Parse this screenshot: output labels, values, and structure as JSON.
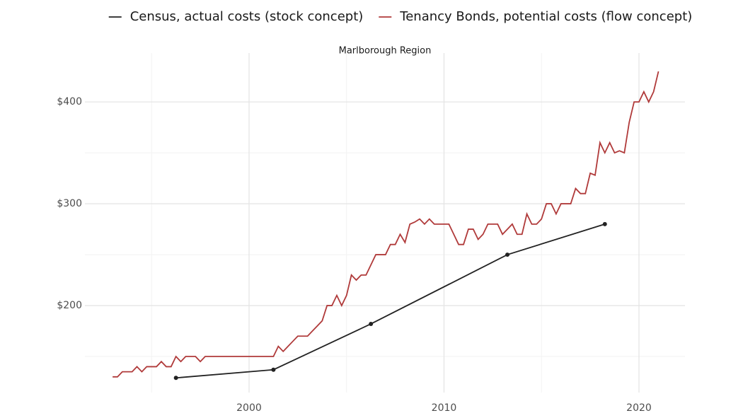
{
  "chart_data": {
    "type": "line",
    "subtitle": "Marlborough Region",
    "series": [
      {
        "name": "Census, actual costs (stock concept)",
        "color": "#222222",
        "markers": true,
        "x": [
          1996.25,
          2001.25,
          2006.25,
          2013.25,
          2018.25
        ],
        "values": [
          129,
          137,
          182,
          250,
          280
        ]
      },
      {
        "name": "Tenancy Bonds, potential costs (flow concept)",
        "color": "#b03a3a",
        "markers": false,
        "x": [
          1993,
          1993.25,
          1993.5,
          1993.75,
          1994,
          1994.25,
          1994.5,
          1994.75,
          1995,
          1995.25,
          1995.5,
          1995.75,
          1996,
          1996.25,
          1996.5,
          1996.75,
          1997,
          1997.25,
          1997.5,
          1997.75,
          1998,
          1998.25,
          1998.5,
          1998.75,
          1999,
          1999.25,
          1999.5,
          1999.75,
          2000,
          2000.25,
          2000.5,
          2000.75,
          2001,
          2001.25,
          2001.5,
          2001.75,
          2002,
          2002.25,
          2002.5,
          2002.75,
          2003,
          2003.25,
          2003.5,
          2003.75,
          2004,
          2004.25,
          2004.5,
          2004.75,
          2005,
          2005.25,
          2005.5,
          2005.75,
          2006,
          2006.25,
          2006.5,
          2006.75,
          2007,
          2007.25,
          2007.5,
          2007.75,
          2008,
          2008.25,
          2008.5,
          2008.75,
          2009,
          2009.25,
          2009.5,
          2009.75,
          2010,
          2010.25,
          2010.5,
          2010.75,
          2011,
          2011.25,
          2011.5,
          2011.75,
          2012,
          2012.25,
          2012.5,
          2012.75,
          2013,
          2013.25,
          2013.5,
          2013.75,
          2014,
          2014.25,
          2014.5,
          2014.75,
          2015,
          2015.25,
          2015.5,
          2015.75,
          2016,
          2016.25,
          2016.5,
          2016.75,
          2017,
          2017.25,
          2017.5,
          2017.75,
          2018,
          2018.25,
          2018.5,
          2018.75,
          2019,
          2019.25,
          2019.5,
          2019.75,
          2020,
          2020.25,
          2020.5,
          2020.75,
          2021
        ],
        "values": [
          130,
          130,
          135,
          135,
          135,
          140,
          135,
          140,
          140,
          140,
          145,
          140,
          140,
          150,
          145,
          150,
          150,
          150,
          145,
          150,
          150,
          150,
          150,
          150,
          150,
          150,
          150,
          150,
          150,
          150,
          150,
          150,
          150,
          150,
          160,
          155,
          160,
          165,
          170,
          170,
          170,
          175,
          180,
          185,
          200,
          200,
          210,
          200,
          210,
          230,
          225,
          230,
          230,
          240,
          250,
          250,
          250,
          260,
          260,
          270,
          262,
          280,
          282,
          285,
          280,
          285,
          280,
          280,
          280,
          280,
          270,
          260,
          260,
          275,
          275,
          265,
          270,
          280,
          280,
          280,
          270,
          275,
          280,
          270,
          270,
          290,
          280,
          280,
          285,
          300,
          300,
          290,
          300,
          300,
          300,
          315,
          310,
          310,
          330,
          328,
          360,
          350,
          360,
          350,
          352,
          350,
          380,
          400,
          400,
          410,
          400,
          410,
          430
        ]
      }
    ],
    "xlim": [
      1991.58,
      2022.36
    ],
    "xticks": [
      2000,
      2010,
      2020
    ],
    "ylim": [
      114.6,
      448
    ],
    "yticks": [
      {
        "value": 200,
        "label": "$200"
      },
      {
        "value": 300,
        "label": "$300"
      },
      {
        "value": 400,
        "label": "$400"
      }
    ],
    "grid": true,
    "legend": "top"
  }
}
